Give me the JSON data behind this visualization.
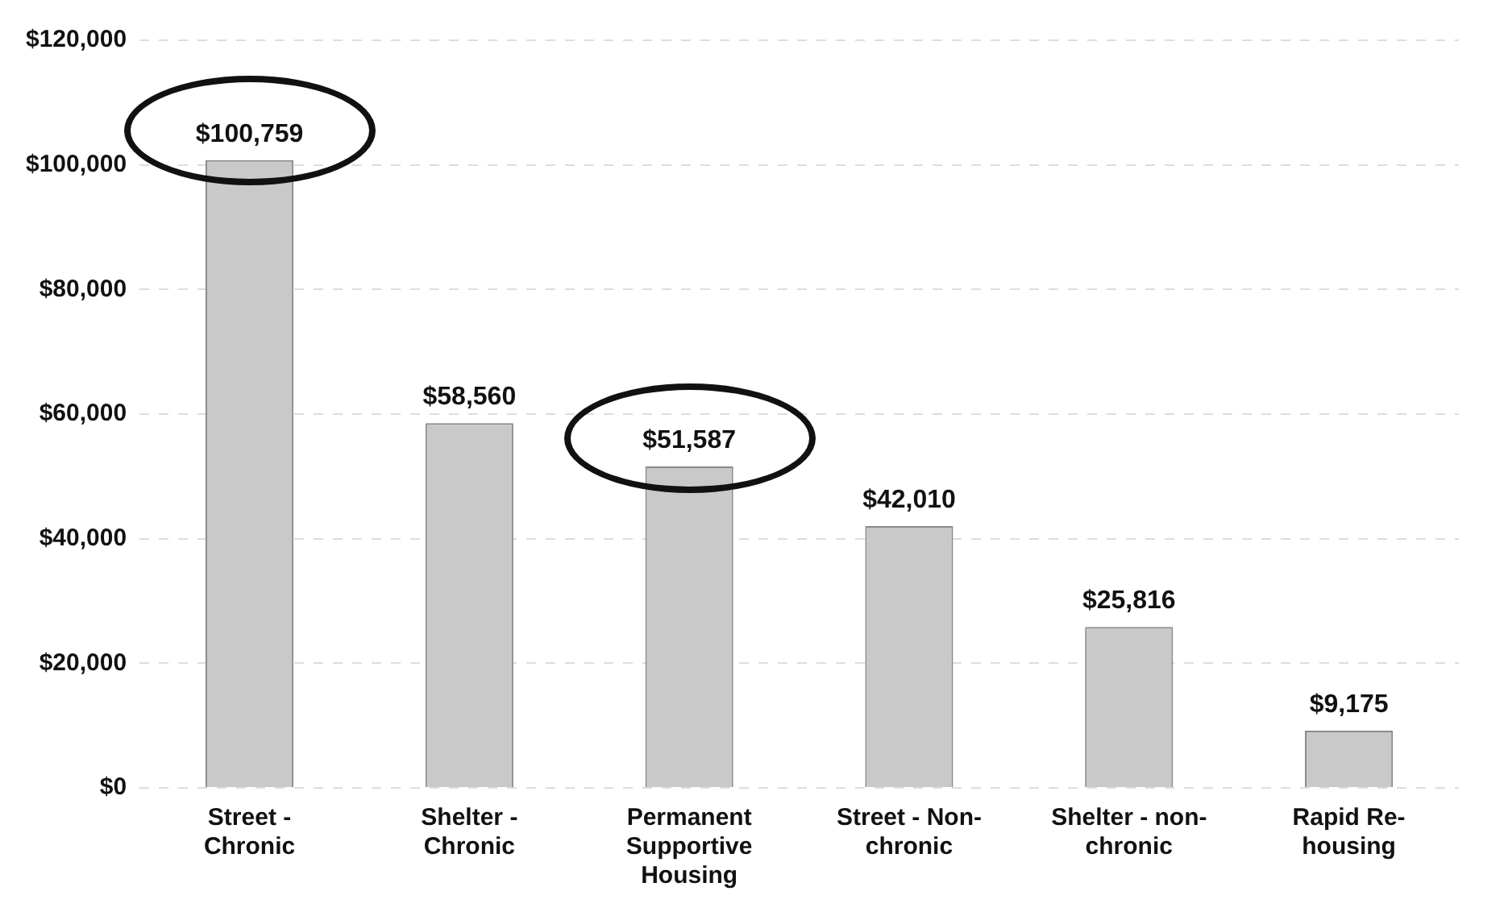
{
  "chart_data": {
    "type": "bar",
    "categories": [
      "Street - Chronic",
      "Shelter - Chronic",
      "Permanent Supportive Housing",
      "Street - Non-chronic",
      "Shelter - non-chronic",
      "Rapid Re-housing"
    ],
    "values": [
      100759,
      58560,
      51587,
      42010,
      25816,
      9175
    ],
    "color": "#c9c9c9",
    "ylim": [
      0,
      120000
    ],
    "yticks": [
      {
        "value": 0,
        "label": "$0"
      },
      {
        "value": 20000,
        "label": "$20,000"
      },
      {
        "value": 40000,
        "label": "$40,000"
      },
      {
        "value": 60000,
        "label": "$60,000"
      },
      {
        "value": 80000,
        "label": "$80,000"
      },
      {
        "value": 100000,
        "label": "$100,000"
      },
      {
        "value": 120000,
        "label": "$120,000"
      }
    ],
    "value_labels": [
      "$100,759",
      "$58,560",
      "$51,587",
      "$42,010",
      "$25,816",
      "$9,175"
    ],
    "grid": "y",
    "legend": false
  }
}
